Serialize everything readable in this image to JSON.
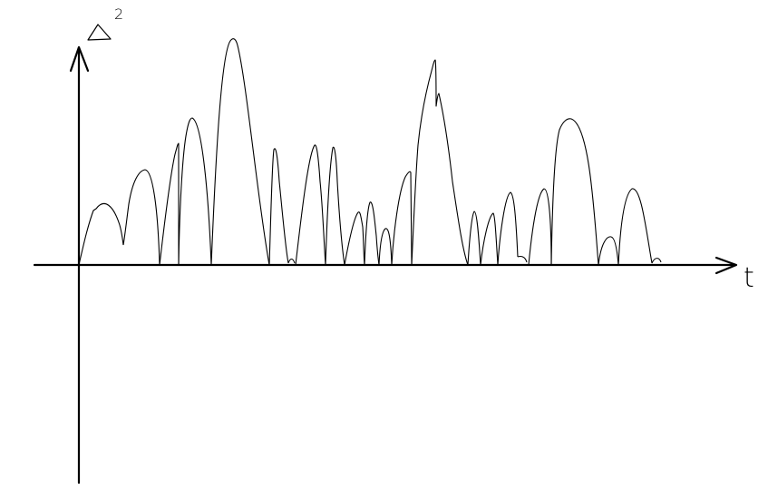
{
  "labels": {
    "x_axis": "t",
    "y_axis_symbol": "Δ",
    "y_axis_exponent": "2"
  }
}
